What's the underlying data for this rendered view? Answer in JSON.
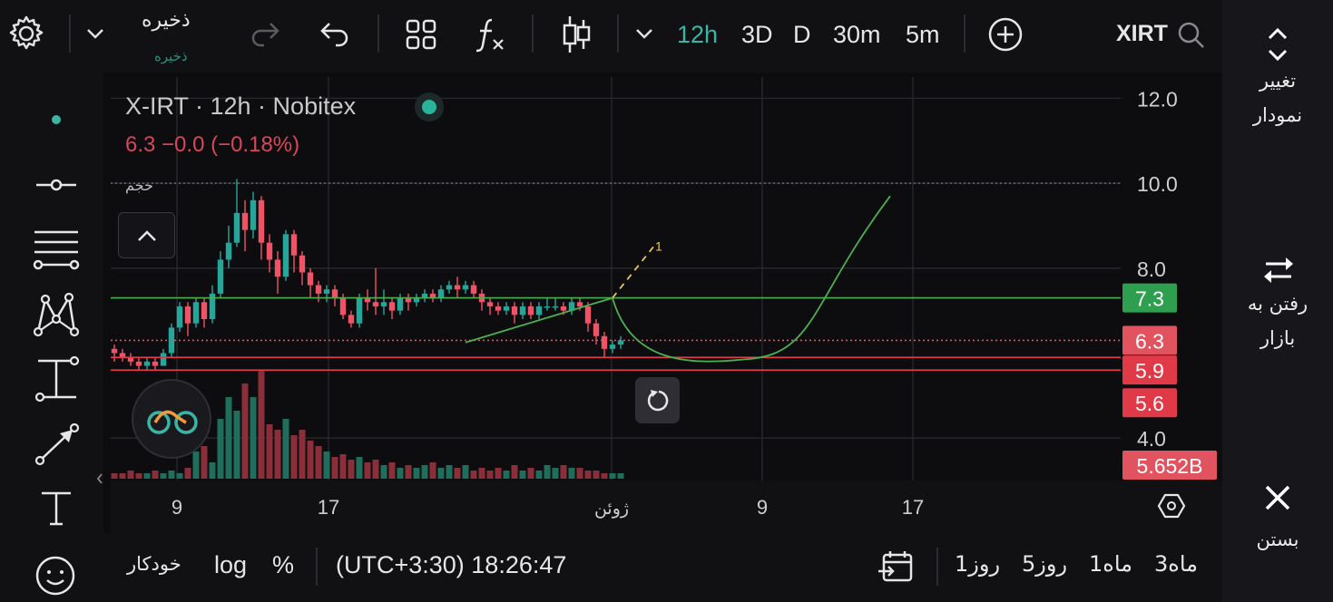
{
  "toolbar": {
    "save_label": "ذخیره",
    "save_sublabel": "ذخیره",
    "intervals": [
      {
        "label": "12h",
        "active": true
      },
      {
        "label": "3D",
        "active": false
      },
      {
        "label": "D",
        "active": false
      },
      {
        "label": "30m",
        "active": false
      },
      {
        "label": "5m",
        "active": false
      }
    ],
    "symbol": "XIRT",
    "icons": [
      "settings-icon",
      "chevron-down-icon",
      "redo-icon",
      "undo-icon",
      "layouts-icon",
      "indicators-icon",
      "candles-icon",
      "chevron-down-icon",
      "add-circle-icon",
      "search-icon"
    ]
  },
  "right_panel": {
    "change_chart": "تغییر\nنمودار",
    "go_market": "رفتن به\nبازار",
    "close": "بستن"
  },
  "chart_overlay": {
    "title": "X-IRT  · 12h · Nobitex",
    "price_line": "6.3  −0.0 (−0.18%)",
    "volume_label": "حجم"
  },
  "bottom_bar": {
    "range_buttons": [
      "3ماه",
      "1ماه",
      "5روز",
      "1روز"
    ],
    "time": "(UTC+3:30) 18:26:47",
    "percent": "%",
    "log": "log",
    "auto": "خودکار"
  },
  "chart_data": {
    "type": "candlestick",
    "price_axis": {
      "ticks": [
        12.0,
        10.0,
        8.0,
        4.0
      ],
      "ylim": [
        3.0,
        12.5
      ]
    },
    "x_labels": [
      "9",
      "17",
      "ژوئن",
      "9",
      "17"
    ],
    "price_badges": [
      {
        "label": "7.3",
        "color": "#2e9e4f"
      },
      {
        "label": "6.3",
        "color": "#e0535f"
      },
      {
        "label": "5.9",
        "color": "#e03a48"
      },
      {
        "label": "5.6",
        "color": "#e03a48"
      },
      {
        "label": "5.652B",
        "color": "#e0535f"
      }
    ],
    "horizontal_lines": [
      {
        "value": 7.3,
        "color": "#4caf50"
      },
      {
        "value": 6.3,
        "color": "#e0535f",
        "style": "dotted"
      },
      {
        "value": 5.9,
        "color": "#e03a48"
      },
      {
        "value": 5.6,
        "color": "#e03a48"
      }
    ],
    "volume_dotted_line": 10.0,
    "candles": [
      [
        6.1,
        6.0,
        6.2,
        5.8
      ],
      [
        6.0,
        5.9,
        6.1,
        5.8
      ],
      [
        5.9,
        5.8,
        6.0,
        5.7
      ],
      [
        5.8,
        5.7,
        5.9,
        5.6
      ],
      [
        5.7,
        5.8,
        5.9,
        5.6
      ],
      [
        5.8,
        5.7,
        5.9,
        5.6
      ],
      [
        5.7,
        6.0,
        6.1,
        5.7
      ],
      [
        6.0,
        6.6,
        6.7,
        5.9
      ],
      [
        6.6,
        7.1,
        7.2,
        6.5
      ],
      [
        7.1,
        6.7,
        7.2,
        6.4
      ],
      [
        6.7,
        7.2,
        7.3,
        6.6
      ],
      [
        7.2,
        6.8,
        7.3,
        6.6
      ],
      [
        6.8,
        7.4,
        7.6,
        6.7
      ],
      [
        7.4,
        8.2,
        8.4,
        7.3
      ],
      [
        8.2,
        8.6,
        9.0,
        8.0
      ],
      [
        8.6,
        9.3,
        10.1,
        8.5
      ],
      [
        9.3,
        8.9,
        9.6,
        8.4
      ],
      [
        8.9,
        9.6,
        9.8,
        8.7
      ],
      [
        9.6,
        8.6,
        9.7,
        8.2
      ],
      [
        8.6,
        8.2,
        8.8,
        7.9
      ],
      [
        8.2,
        7.8,
        8.4,
        7.4
      ],
      [
        7.8,
        8.8,
        8.9,
        7.7
      ],
      [
        8.8,
        8.3,
        8.9,
        7.9
      ],
      [
        8.3,
        7.9,
        8.4,
        7.6
      ],
      [
        7.9,
        7.6,
        8.0,
        7.3
      ],
      [
        7.6,
        7.4,
        7.7,
        7.2
      ],
      [
        7.4,
        7.5,
        7.6,
        7.2
      ],
      [
        7.5,
        7.3,
        7.6,
        7.1
      ],
      [
        7.3,
        6.9,
        7.4,
        6.8
      ],
      [
        6.9,
        6.7,
        7.0,
        6.6
      ],
      [
        6.7,
        7.3,
        7.4,
        6.6
      ],
      [
        7.3,
        7.2,
        7.5,
        7.0
      ],
      [
        7.2,
        7.1,
        8.0,
        6.9
      ],
      [
        7.1,
        7.2,
        7.5,
        6.9
      ],
      [
        7.2,
        7.0,
        7.3,
        6.8
      ],
      [
        7.0,
        7.3,
        7.4,
        6.9
      ],
      [
        7.3,
        7.2,
        7.4,
        7.0
      ],
      [
        7.2,
        7.3,
        7.4,
        7.1
      ],
      [
        7.3,
        7.4,
        7.5,
        7.2
      ],
      [
        7.4,
        7.3,
        7.5,
        7.2
      ],
      [
        7.3,
        7.5,
        7.6,
        7.2
      ],
      [
        7.5,
        7.6,
        7.7,
        7.4
      ],
      [
        7.6,
        7.5,
        7.8,
        7.3
      ],
      [
        7.5,
        7.6,
        7.7,
        7.4
      ],
      [
        7.6,
        7.4,
        7.7,
        7.3
      ],
      [
        7.4,
        7.2,
        7.5,
        7.0
      ],
      [
        7.2,
        7.1,
        7.3,
        6.9
      ],
      [
        7.1,
        7.0,
        7.2,
        6.9
      ],
      [
        7.0,
        7.1,
        7.2,
        6.9
      ],
      [
        7.1,
        6.9,
        7.2,
        6.7
      ],
      [
        6.9,
        7.1,
        7.2,
        6.8
      ],
      [
        7.1,
        6.9,
        7.2,
        6.8
      ],
      [
        6.9,
        7.1,
        7.2,
        6.8
      ],
      [
        7.1,
        7.1,
        7.3,
        7.0
      ],
      [
        7.1,
        7.1,
        7.3,
        7.0
      ],
      [
        7.1,
        7.0,
        7.2,
        6.9
      ],
      [
        7.0,
        7.2,
        7.3,
        6.9
      ],
      [
        7.2,
        7.1,
        7.3,
        7.0
      ],
      [
        7.1,
        6.7,
        7.2,
        6.5
      ],
      [
        6.7,
        6.4,
        6.8,
        6.2
      ],
      [
        6.4,
        6.1,
        6.5,
        5.9
      ],
      [
        6.1,
        6.2,
        6.3,
        6.0
      ],
      [
        6.2,
        6.3,
        6.4,
        6.1
      ]
    ],
    "volumes": [
      2,
      2,
      3,
      2,
      2,
      3,
      2,
      3,
      2,
      4,
      10,
      12,
      6,
      22,
      30,
      25,
      35,
      30,
      40,
      20,
      18,
      22,
      16,
      18,
      14,
      12,
      10,
      8,
      9,
      7,
      8,
      6,
      7,
      5,
      6,
      4,
      5,
      4,
      5,
      6,
      4,
      5,
      4,
      5,
      3,
      4,
      3,
      4,
      3,
      5,
      3,
      4,
      3,
      5,
      4,
      5,
      4,
      4,
      3,
      3,
      2,
      2,
      2
    ],
    "drawings": [
      {
        "type": "polyline",
        "color": "#4caf50",
        "points": [
          [
            43,
            6.25
          ],
          [
            61,
            7.3
          ]
        ]
      },
      {
        "type": "polyline",
        "color": "#e6c74a",
        "style": "dashed",
        "points": [
          [
            61,
            7.3
          ],
          [
            66,
            8.5
          ]
        ]
      },
      {
        "type": "arc",
        "color": "#4caf50",
        "from": [
          61,
          7.3
        ],
        "through": [
          77,
          5.85
        ],
        "to": [
          95,
          9.7
        ]
      }
    ],
    "drawing_labels": [
      "1"
    ]
  }
}
